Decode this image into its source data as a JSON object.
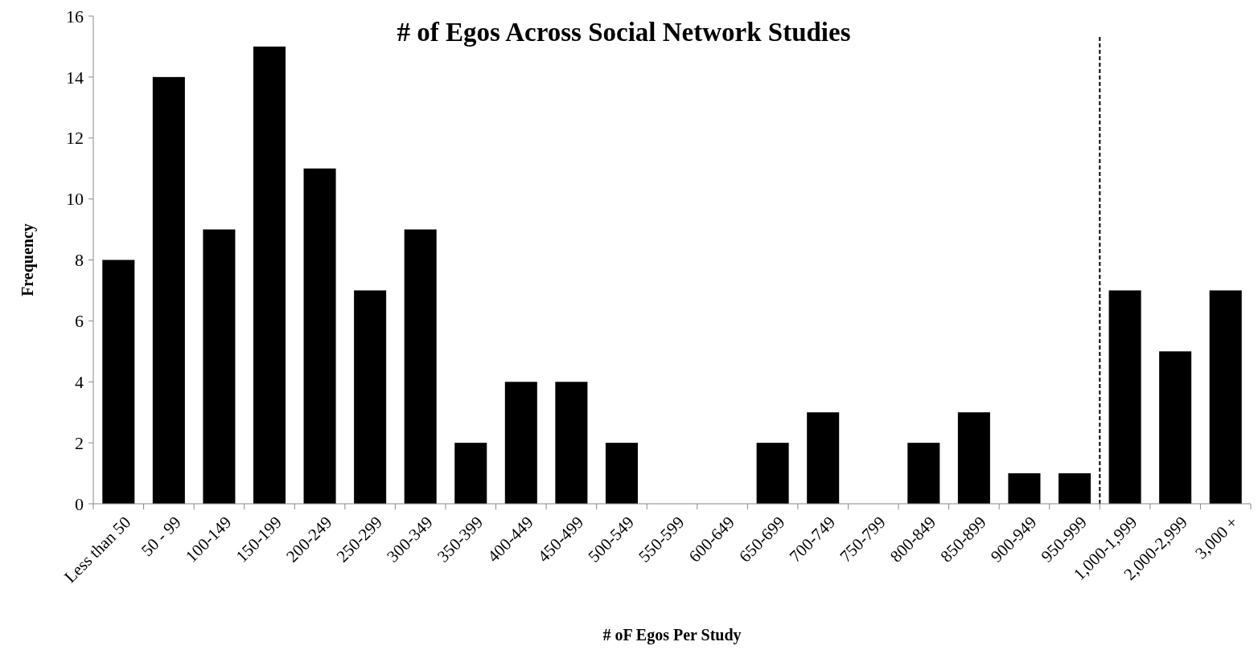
{
  "chart_data": {
    "type": "bar",
    "title": "# of Egos Across Social Network Studies",
    "xlabel": "# oF Egos Per Study",
    "ylabel": "Frequency",
    "categories": [
      "Less than 50",
      "50 - 99",
      "100-149",
      "150-199",
      "200-249",
      "250-299",
      "300-349",
      "350-399",
      "400-449",
      "450-499",
      "500-549",
      "550-599",
      "600-649",
      "650-699",
      "700-749",
      "750-799",
      "800-849",
      "850-899",
      "900-949",
      "950-999",
      "1,000-1,999",
      "2,000-2,999",
      "3,000 +"
    ],
    "values": [
      8,
      14,
      9,
      15,
      11,
      7,
      9,
      2,
      4,
      4,
      2,
      0,
      0,
      2,
      3,
      0,
      2,
      3,
      1,
      1,
      7,
      5,
      7
    ],
    "color": "#000000",
    "ylim": [
      0,
      16
    ],
    "yticks": [
      0,
      2,
      4,
      6,
      8,
      10,
      12,
      14,
      16
    ]
  }
}
